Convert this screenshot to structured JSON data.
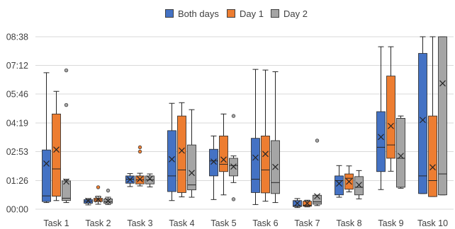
{
  "chart_data": {
    "type": "box",
    "title": "",
    "xlabel": "",
    "ylabel": "",
    "y_unit": "mm:ss",
    "ylim": [
      "00:00",
      "08:38"
    ],
    "y_ticks": [
      "00:00",
      "01:26",
      "02:53",
      "04:19",
      "05:46",
      "07:12",
      "08:38"
    ],
    "grid": "horizontal",
    "legend_position": "top",
    "categories": [
      "Task 1",
      "Task 2",
      "Task 3",
      "Task 4",
      "Task 5",
      "Task 6",
      "Task 7",
      "Task 8",
      "Task 9",
      "Task 10"
    ],
    "series": [
      {
        "name": "Both days",
        "color": "#4472C4",
        "boxes": [
          {
            "min": "00:20",
            "q1": "00:23",
            "median": "00:40",
            "q3": "02:58",
            "max": "06:50",
            "mean": "02:17",
            "outliers": []
          },
          {
            "min": "00:13",
            "q1": "00:18",
            "median": "00:24",
            "q3": "00:29",
            "max": "00:32",
            "mean": "00:25",
            "outliers": []
          },
          {
            "min": "01:08",
            "q1": "01:18",
            "median": "01:30",
            "q3": "01:40",
            "max": "01:47",
            "mean": "01:29",
            "outliers": []
          },
          {
            "min": "00:26",
            "q1": "00:53",
            "median": "01:40",
            "q3": "03:56",
            "max": "05:18",
            "mean": "02:30",
            "outliers": []
          },
          {
            "min": "00:29",
            "q1": "01:40",
            "median": "02:25",
            "q3": "03:00",
            "max": "03:40",
            "mean": "02:23",
            "outliers": []
          },
          {
            "min": "00:14",
            "q1": "00:50",
            "median": "01:30",
            "q3": "03:33",
            "max": "07:00",
            "mean": "02:35",
            "outliers": []
          },
          {
            "min": "00:05",
            "q1": "00:08",
            "median": "00:10",
            "q3": "00:26",
            "max": "00:32",
            "mean": "00:18",
            "outliers": []
          },
          {
            "min": "00:36",
            "q1": "00:43",
            "median": "01:26",
            "q3": "01:40",
            "max": "02:11",
            "mean": "01:17",
            "outliers": []
          },
          {
            "min": "00:59",
            "q1": "01:53",
            "median": "03:06",
            "q3": "04:53",
            "max": "08:08",
            "mean": "03:37",
            "outliers": []
          },
          {
            "min": "00:47",
            "q1": "00:47",
            "median": "01:40",
            "q3": "07:48",
            "max": "08:38",
            "mean": "04:28",
            "outliers": []
          }
        ]
      },
      {
        "name": "Day 1",
        "color": "#ED7D31",
        "boxes": [
          {
            "min": "00:26",
            "q1": "00:39",
            "median": "02:01",
            "q3": "04:46",
            "max": "05:54",
            "mean": "02:59",
            "outliers": []
          },
          {
            "min": "00:15",
            "q1": "00:23",
            "median": "00:28",
            "q3": "00:33",
            "max": "00:39",
            "mean": "00:29",
            "outliers": [
              "01:06"
            ]
          },
          {
            "min": "01:10",
            "q1": "01:16",
            "median": "01:28",
            "q3": "01:40",
            "max": "01:48",
            "mean": "01:30",
            "outliers": [
              "02:53",
              "03:06"
            ]
          },
          {
            "min": "00:37",
            "q1": "00:50",
            "median": "01:58",
            "q3": "04:40",
            "max": "05:20",
            "mean": "02:56",
            "outliers": []
          },
          {
            "min": "00:43",
            "q1": "01:53",
            "median": "02:15",
            "q3": "03:40",
            "max": "04:46",
            "mean": "02:29",
            "outliers": []
          },
          {
            "min": "00:24",
            "q1": "00:49",
            "median": "01:58",
            "q3": "03:40",
            "max": "06:58",
            "mean": "02:46",
            "outliers": []
          },
          {
            "min": "00:07",
            "q1": "00:09",
            "median": "00:12",
            "q3": "00:24",
            "max": "00:27",
            "mean": "00:18",
            "outliers": []
          },
          {
            "min": "00:52",
            "q1": "01:00",
            "median": "01:33",
            "q3": "01:46",
            "max": "02:10",
            "mean": "01:23",
            "outliers": []
          },
          {
            "min": "01:54",
            "q1": "02:33",
            "median": "03:13",
            "q3": "06:40",
            "max": "08:08",
            "mean": "04:10",
            "outliers": []
          },
          {
            "min": "00:38",
            "q1": "00:38",
            "median": "01:26",
            "q3": "04:40",
            "max": "08:38",
            "mean": "02:06",
            "outliers": []
          }
        ]
      },
      {
        "name": "Day 2",
        "color": "#A5A5A5",
        "boxes": [
          {
            "min": "00:20",
            "q1": "00:26",
            "median": "00:33",
            "q3": "01:25",
            "max": "01:30",
            "mean": "01:23",
            "outliers": [
              "05:13",
              "06:57"
            ]
          },
          {
            "min": "00:14",
            "q1": "00:18",
            "median": "00:23",
            "q3": "00:31",
            "max": "00:36",
            "mean": "00:25",
            "outliers": [
              "00:56"
            ]
          },
          {
            "min": "01:07",
            "q1": "01:16",
            "median": "01:28",
            "q3": "01:40",
            "max": "01:46",
            "mean": "01:32",
            "outliers": []
          },
          {
            "min": "00:36",
            "q1": "00:58",
            "median": "01:13",
            "q3": "03:13",
            "max": "04:59",
            "mean": "01:49",
            "outliers": []
          },
          {
            "min": "01:20",
            "q1": "01:40",
            "median": "02:11",
            "q3": "02:33",
            "max": "02:40",
            "mean": "02:08",
            "outliers": [
              "00:30",
              "04:40"
            ]
          },
          {
            "min": "00:20",
            "q1": "00:47",
            "median": "01:20",
            "q3": "03:26",
            "max": "06:53",
            "mean": "02:07",
            "outliers": []
          },
          {
            "min": "00:11",
            "q1": "00:15",
            "median": "00:22",
            "q3": "00:42",
            "max": "00:42",
            "mean": "00:39",
            "outliers": [
              "03:26"
            ]
          },
          {
            "min": "00:31",
            "q1": "00:43",
            "median": "01:06",
            "q3": "01:38",
            "max": "01:56",
            "mean": "01:13",
            "outliers": []
          },
          {
            "min": "01:03",
            "q1": "01:06",
            "median": "02:33",
            "q3": "04:33",
            "max": "04:40",
            "mean": "02:40",
            "outliers": []
          },
          {
            "min": "00:43",
            "q1": "00:43",
            "median": "01:46",
            "q3": "08:38",
            "max": "08:38",
            "mean": "06:18",
            "outliers": []
          }
        ]
      }
    ]
  }
}
